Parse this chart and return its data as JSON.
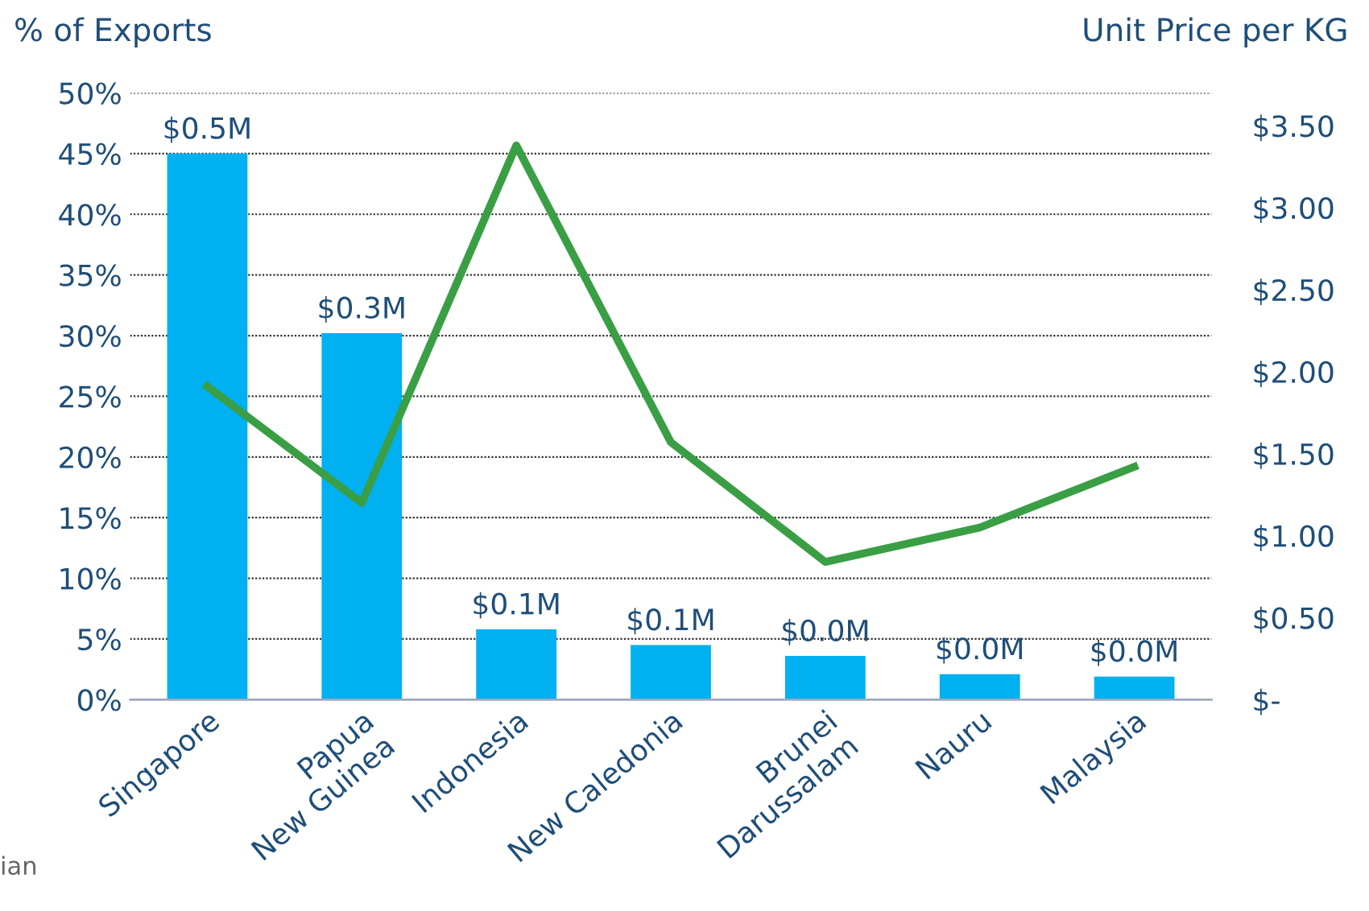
{
  "chart_data": {
    "type": "bar",
    "ylabel": "% of Exports",
    "y2label": "Unit Price per KG",
    "categories": [
      "Singapore",
      "Papua\nNew Guinea",
      "Indonesia",
      "New Caledonia",
      "Brunei\nDarussalam",
      "Nauru",
      "Malaysia"
    ],
    "series": [
      {
        "color": "#00b0f0",
        "values": [
          45,
          30.2,
          5.8,
          4.5,
          3.6,
          2.1,
          1.9
        ]
      },
      {
        "type": "line",
        "axis": "y2",
        "color": "#3a9f44",
        "values": [
          1.91,
          1.2,
          3.38,
          1.57,
          0.84,
          1.05,
          1.42
        ]
      }
    ],
    "ylim": [
      0,
      50
    ],
    "yticks": [
      {
        "value": 0,
        "label": "0%"
      },
      {
        "value": 5,
        "label": "5%"
      },
      {
        "value": 10,
        "label": "10%"
      },
      {
        "value": 15,
        "label": "15%"
      },
      {
        "value": 20,
        "label": "20%"
      },
      {
        "value": 25,
        "label": "25%"
      },
      {
        "value": 30,
        "label": "30%"
      },
      {
        "value": 35,
        "label": "35%"
      },
      {
        "value": 40,
        "label": "40%"
      },
      {
        "value": 45,
        "label": "45%"
      },
      {
        "value": 50,
        "label": "50%"
      }
    ],
    "y2lim": [
      0,
      3.7
    ],
    "y2ticks": [
      {
        "value": 0,
        "label": "$-"
      },
      {
        "value": 0.5,
        "label": "$0.50"
      },
      {
        "value": 1,
        "label": "$1.00"
      },
      {
        "value": 1.5,
        "label": "$1.50"
      },
      {
        "value": 2,
        "label": "$2.00"
      },
      {
        "value": 2.5,
        "label": "$2.50"
      },
      {
        "value": 3,
        "label": "$3.00"
      },
      {
        "value": 3.5,
        "label": "$3.50"
      }
    ],
    "grid": "y",
    "legend": false,
    "line_style": "solid",
    "marker": "none",
    "annotations": [
      {
        "text": "$0.5M",
        "x": "Singapore",
        "y": 45
      },
      {
        "text": "$0.3M",
        "x": "Papua\nNew Guinea",
        "y": 30.2
      },
      {
        "text": "$0.1M",
        "x": "Indonesia",
        "y": 5.8
      },
      {
        "text": "$0.1M",
        "x": "New Caledonia",
        "y": 4.5
      },
      {
        "text": "$0.0M",
        "x": "Brunei\nDarussalam",
        "y": 3.6
      },
      {
        "text": "$0.0M",
        "x": "Nauru",
        "y": 2.1
      },
      {
        "text": "$0.0M",
        "x": "Malaysia",
        "y": 1.9
      },
      "ian"
    ]
  }
}
